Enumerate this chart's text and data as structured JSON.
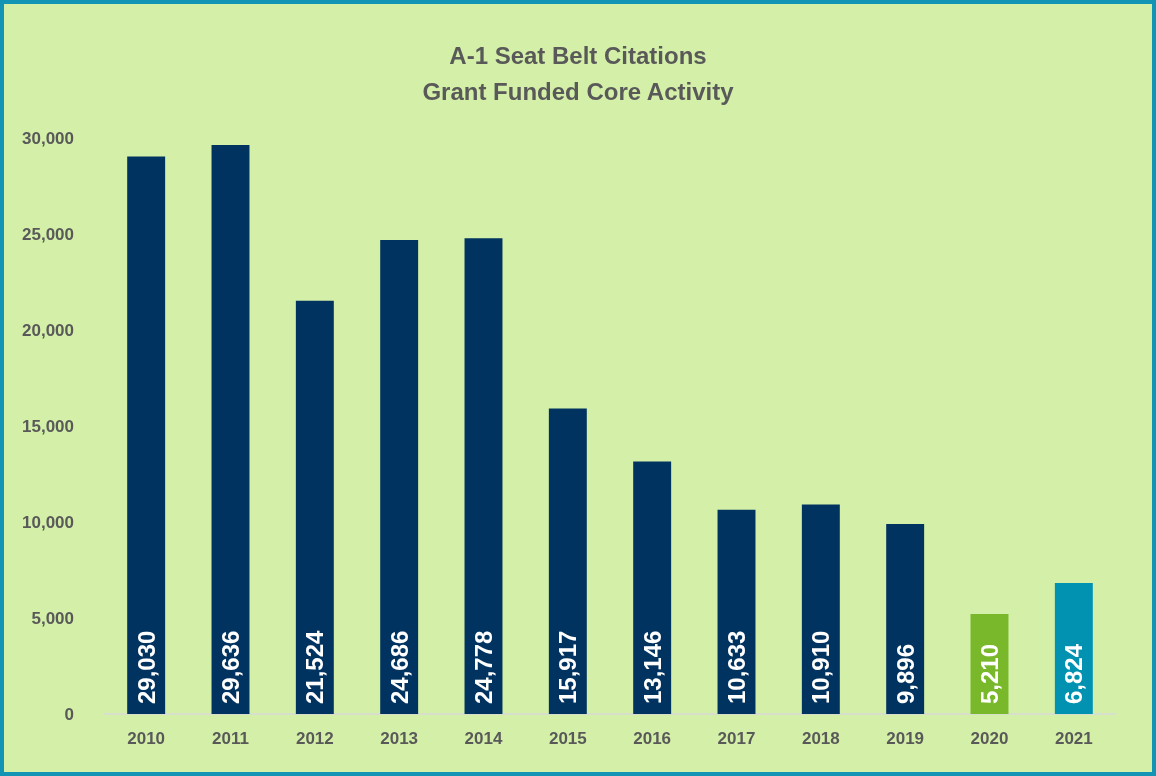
{
  "chart_data": {
    "type": "bar",
    "title": "A-1 Seat Belt Citations\nGrant Funded Core Activity",
    "categories": [
      "2010",
      "2011",
      "2012",
      "2013",
      "2014",
      "2015",
      "2016",
      "2017",
      "2018",
      "2019",
      "2020",
      "2021"
    ],
    "values": [
      29030,
      29636,
      21524,
      24686,
      24778,
      15917,
      13146,
      10633,
      10910,
      9896,
      5210,
      6824
    ],
    "value_labels": [
      "29,030",
      "29,636",
      "21,524",
      "24,686",
      "24,778",
      "15,917",
      "13,146",
      "10,633",
      "10,910",
      "9,896",
      "5,210",
      "6,824"
    ],
    "colors": [
      "#003360",
      "#003360",
      "#003360",
      "#003360",
      "#003360",
      "#003360",
      "#003360",
      "#003360",
      "#003360",
      "#003360",
      "#78b82a",
      "#0092b0"
    ],
    "ylim": [
      0,
      30000
    ],
    "yticks": [
      0,
      {
        "value": 5000,
        "label": "5,000"
      },
      {
        "value": 10000,
        "label": "10,000"
      },
      {
        "value": 15000,
        "label": "15,000"
      },
      {
        "value": 20000,
        "label": "20,000"
      },
      {
        "value": 25000,
        "label": "25,000"
      },
      {
        "value": 30000,
        "label": "30,000"
      }
    ],
    "grid": false
  }
}
